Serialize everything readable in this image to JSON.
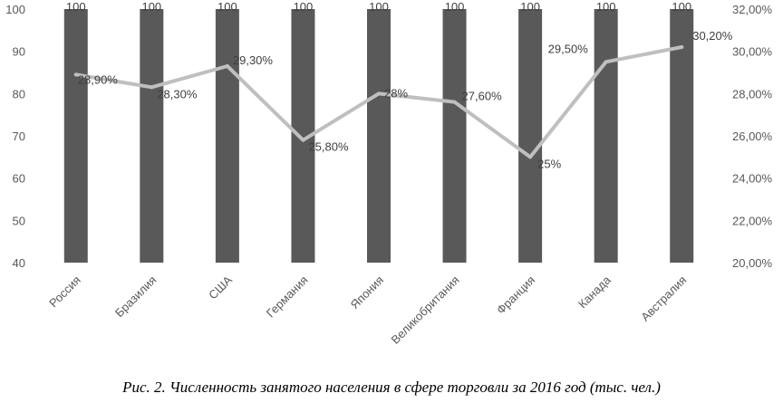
{
  "caption": "Рис. 2. Численность занятого населения в сфере торговли за 2016 год (тыс. чел.)",
  "chart_data": {
    "type": "bar",
    "categories": [
      "Россия",
      "Бразилия",
      "США",
      "Германия",
      "Япония",
      "Великобритания",
      "Франция",
      "Канада",
      "Австралия"
    ],
    "series": [
      {
        "type": "bar",
        "axis": "left",
        "color": "#595959",
        "values": [
          100,
          100,
          100,
          100,
          100,
          100,
          100,
          100,
          100
        ],
        "labels": [
          "100",
          "100",
          "100",
          "100",
          "100",
          "100",
          "100",
          "100",
          "100"
        ]
      },
      {
        "type": "line",
        "axis": "right",
        "color": "#bfbfbf",
        "values": [
          28.9,
          28.3,
          29.3,
          25.8,
          28.0,
          27.6,
          25.0,
          29.5,
          30.2
        ],
        "labels": [
          "28,90%",
          "28,30%",
          "29,30%",
          "25,80%",
          "28%",
          "27,60%",
          "25%",
          "29,50%",
          "30,20%"
        ]
      }
    ],
    "y_left": {
      "ylim": [
        40,
        100
      ],
      "ticks": [
        "100",
        "90",
        "80",
        "70",
        "60",
        "50",
        "40"
      ]
    },
    "y_right": {
      "ylim": [
        20,
        32
      ],
      "ticks": [
        "32,00%",
        "30,00%",
        "28,00%",
        "26,00%",
        "24,00%",
        "22,00%",
        "20,00%"
      ]
    },
    "grid": false,
    "legend": "none"
  }
}
